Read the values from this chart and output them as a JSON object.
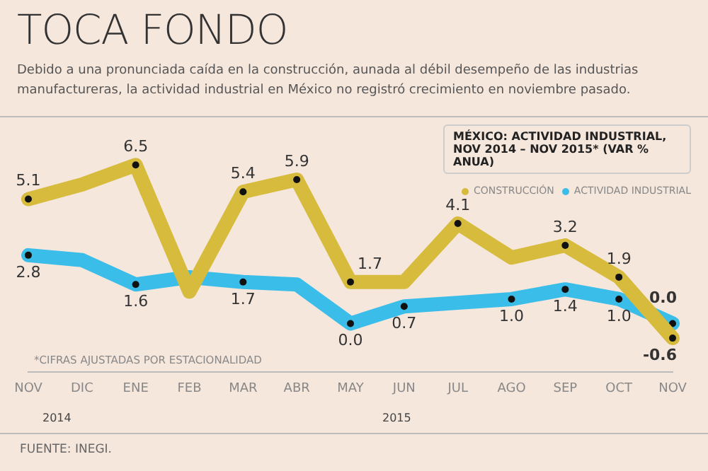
{
  "chart_data": {
    "type": "line",
    "title": "TOCA FONDO",
    "subtitle": "Debido a una pronunciada caída en la construcción, aunada al débil desempeño de las industrias manufactureras, la actividad industrial en México no registró crecimiento en noviembre pasado.",
    "legend_title": "MÉXICO: ACTIVIDAD INDUSTRIAL, NOV 2014 – NOV 2015* (VAR % ANUA)",
    "categories": [
      "NOV",
      "DIC",
      "ENE",
      "FEB",
      "MAR",
      "ABR",
      "MAY",
      "JUN",
      "JUL",
      "AGO",
      "SEP",
      "OCT",
      "NOV"
    ],
    "series": [
      {
        "name": "CONSTRUCCIÓN",
        "color": "#d6bb3c",
        "values": [
          5.1,
          5.7,
          6.5,
          1.3,
          5.4,
          5.9,
          1.7,
          1.7,
          4.1,
          2.7,
          3.2,
          1.9,
          -0.6
        ],
        "value_labels": [
          "5.1",
          null,
          "6.5",
          null,
          "5.4",
          "5.9",
          "1.7",
          null,
          "4.1",
          null,
          "3.2",
          "1.9",
          "-0.6"
        ]
      },
      {
        "name": "ACTIVIDAD INDUSTRIAL",
        "color": "#3bbde9",
        "values": [
          2.8,
          2.6,
          1.6,
          1.9,
          1.7,
          1.6,
          0.0,
          0.7,
          0.85,
          1.0,
          1.4,
          1.0,
          0.0
        ],
        "value_labels": [
          "2.8",
          null,
          "1.6",
          null,
          "1.7",
          null,
          "0.0",
          "0.7",
          null,
          "1.0",
          "1.4",
          "1.0",
          "0.0"
        ]
      }
    ],
    "marker": "circle",
    "legend": "top right",
    "grid": false,
    "annotations": [
      "*CIFRAS AJUSTADAS POR ESTACIONALIDAD",
      "2014",
      "2015",
      "FUENTE: INEGI."
    ]
  }
}
